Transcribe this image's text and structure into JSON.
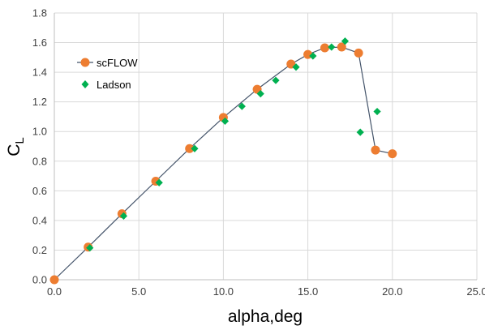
{
  "chart_data": {
    "type": "scatter",
    "xlabel": "alpha,deg",
    "ylabel_main": "C",
    "ylabel_sub": "L",
    "xlim": [
      0,
      25
    ],
    "ylim": [
      0,
      1.8
    ],
    "xticks": [
      0,
      5,
      10,
      15,
      20,
      25
    ],
    "xtick_labels": [
      "0.0",
      "5.0",
      "10.0",
      "15.0",
      "20.0",
      "25.0"
    ],
    "yticks": [
      0,
      0.2,
      0.4,
      0.6,
      0.8,
      1.0,
      1.2,
      1.4,
      1.6,
      1.8
    ],
    "ytick_labels": [
      "0.0",
      "0.2",
      "0.4",
      "0.6",
      "0.8",
      "1.0",
      "1.2",
      "1.4",
      "1.6",
      "1.8"
    ],
    "grid": true,
    "legend_position": "upper-left",
    "series": [
      {
        "name": "scFLOW",
        "marker": "circle",
        "line": true,
        "marker_color": "#ED7D31",
        "line_color": "#44546A",
        "x": [
          0,
          2,
          4,
          6,
          8,
          10,
          12,
          14,
          15,
          16,
          17,
          18,
          19,
          20
        ],
        "y": [
          0.0,
          0.22,
          0.445,
          0.665,
          0.885,
          1.095,
          1.285,
          1.455,
          1.52,
          1.565,
          1.57,
          1.53,
          0.875,
          0.85
        ]
      },
      {
        "name": "Ladson",
        "marker": "diamond",
        "line": false,
        "marker_color": "#00B050",
        "x": [
          2.1,
          4.1,
          6.2,
          8.3,
          10.1,
          11.1,
          12.2,
          13.1,
          14.3,
          15.3,
          16.4,
          17.2,
          18.1,
          19.1
        ],
        "y": [
          0.215,
          0.43,
          0.655,
          0.885,
          1.07,
          1.17,
          1.255,
          1.345,
          1.435,
          1.51,
          1.57,
          1.61,
          0.995,
          1.135
        ]
      }
    ]
  }
}
